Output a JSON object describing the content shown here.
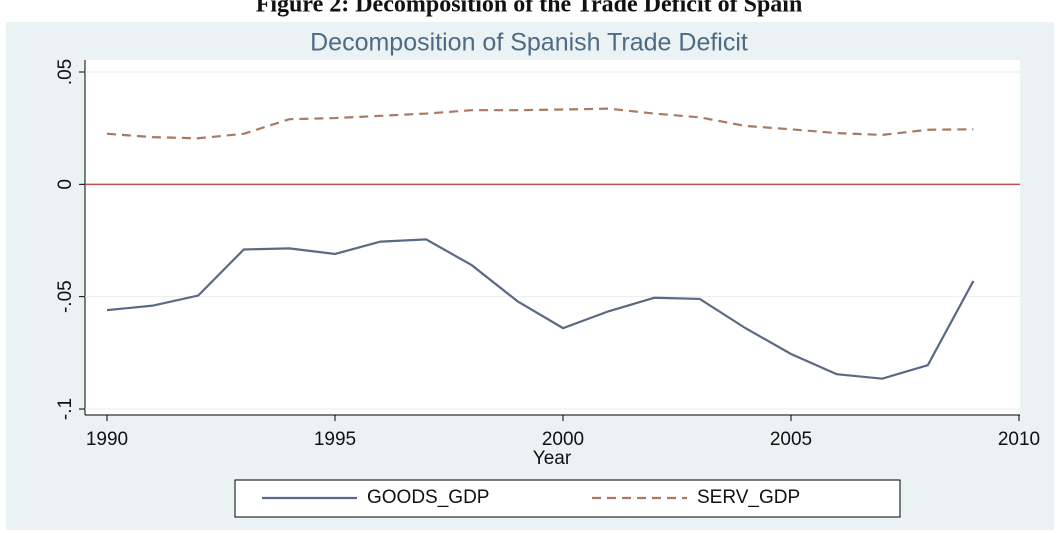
{
  "caption": "Figure 2: Decomposition of the Trade Deficit of Spain",
  "chart_data": {
    "type": "line",
    "title": "Decomposition of Spanish Trade Deficit",
    "x_label": "Year",
    "x": [
      1990,
      1991,
      1992,
      1993,
      1994,
      1995,
      1996,
      1997,
      1998,
      1999,
      2000,
      2001,
      2002,
      2003,
      2004,
      2005,
      2006,
      2007,
      2008,
      2009
    ],
    "series": [
      {
        "name": "GOODS_GDP",
        "color": "#5a6a82",
        "dash": false,
        "values": [
          -0.056,
          -0.054,
          -0.0495,
          -0.029,
          -0.0285,
          -0.031,
          -0.0255,
          -0.0245,
          -0.036,
          -0.052,
          -0.064,
          -0.0565,
          -0.0505,
          -0.051,
          -0.064,
          -0.0755,
          -0.0845,
          -0.0865,
          -0.0805,
          -0.043
        ]
      },
      {
        "name": "SERV_GDP",
        "color": "#a87a62",
        "dash": true,
        "values": [
          0.0225,
          0.021,
          0.0205,
          0.0225,
          0.029,
          0.0295,
          0.0305,
          0.0315,
          0.033,
          0.033,
          0.0333,
          0.0337,
          0.0315,
          0.0298,
          0.026,
          0.0245,
          0.0228,
          0.022,
          0.0243,
          0.0245
        ]
      }
    ],
    "xlim": [
      1990,
      2010
    ],
    "xticks": [
      1990,
      1995,
      2000,
      2005,
      2010
    ],
    "ylim": [
      -0.1,
      0.05
    ],
    "yticks": [
      {
        "value": -0.1,
        "label": "-.1"
      },
      {
        "value": -0.05,
        "label": "-.05"
      },
      {
        "value": 0,
        "label": "0"
      },
      {
        "value": 0.05,
        "label": ".05"
      }
    ],
    "grid": true,
    "reference_line": {
      "value": 0,
      "color": "#c0504d"
    },
    "legend": "bottom"
  }
}
